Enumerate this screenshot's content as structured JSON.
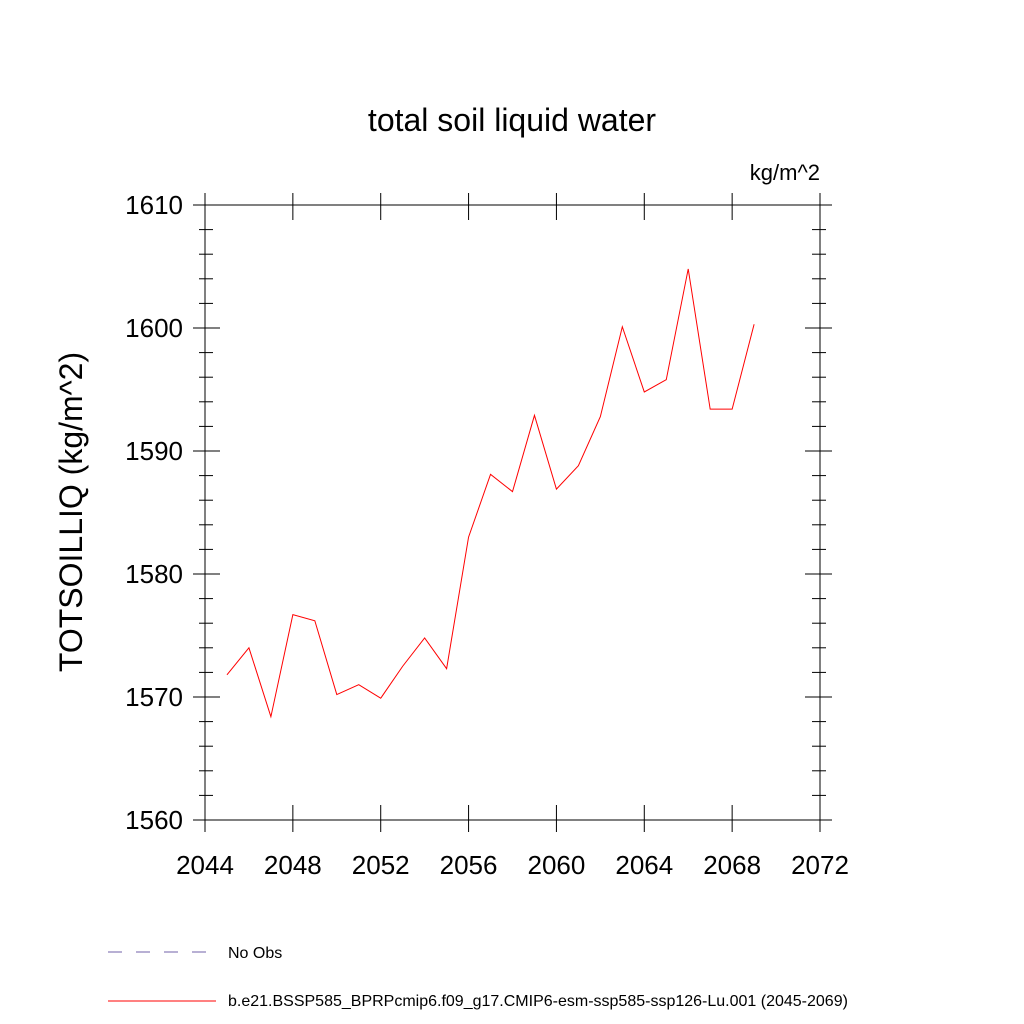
{
  "chart_data": {
    "type": "line",
    "title": "total soil liquid water",
    "units_label": "kg/m^2",
    "ylabel": "TOTSOILLIQ  (kg/m^2)",
    "xlabel": "",
    "xlim": [
      2044,
      2072
    ],
    "ylim": [
      1560,
      1610
    ],
    "x_ticks": [
      2044,
      2048,
      2052,
      2056,
      2060,
      2064,
      2068,
      2072
    ],
    "x_tick_labels": [
      "2044",
      "2048",
      "2052",
      "2056",
      "2060",
      "2064",
      "2068",
      "2072"
    ],
    "y_ticks": [
      1560,
      1570,
      1580,
      1590,
      1600,
      1610
    ],
    "y_tick_labels": [
      "1560",
      "1570",
      "1580",
      "1590",
      "1600",
      "1610"
    ],
    "grid": false,
    "legend_placement": "bottom-left",
    "x": [
      2045,
      2046,
      2047,
      2048,
      2049,
      2050,
      2051,
      2052,
      2053,
      2054,
      2055,
      2056,
      2057,
      2058,
      2059,
      2060,
      2061,
      2062,
      2063,
      2064,
      2065,
      2066,
      2067,
      2068,
      2069
    ],
    "series": [
      {
        "name": "b.e21.BSSP585_BPRPcmip6.f09_g17.CMIP6-esm-ssp585-ssp126-Lu.001 (2045-2069)",
        "color": "#ff0000",
        "values": [
          1571.8,
          1574.0,
          1568.4,
          1576.7,
          1576.2,
          1570.2,
          1571.0,
          1569.9,
          1572.5,
          1574.8,
          1572.3,
          1583.0,
          1588.1,
          1586.7,
          1592.9,
          1586.9,
          1588.8,
          1592.8,
          1600.1,
          1594.8,
          1595.8,
          1604.8,
          1593.4,
          1593.4,
          1600.3
        ]
      }
    ],
    "legend": [
      {
        "label": "No Obs",
        "color": "#7060a8",
        "style": "dashed"
      },
      {
        "label": "b.e21.BSSP585_BPRPcmip6.f09_g17.CMIP6-esm-ssp585-ssp126-Lu.001 (2045-2069)",
        "color": "#ff0000",
        "style": "solid"
      }
    ]
  }
}
